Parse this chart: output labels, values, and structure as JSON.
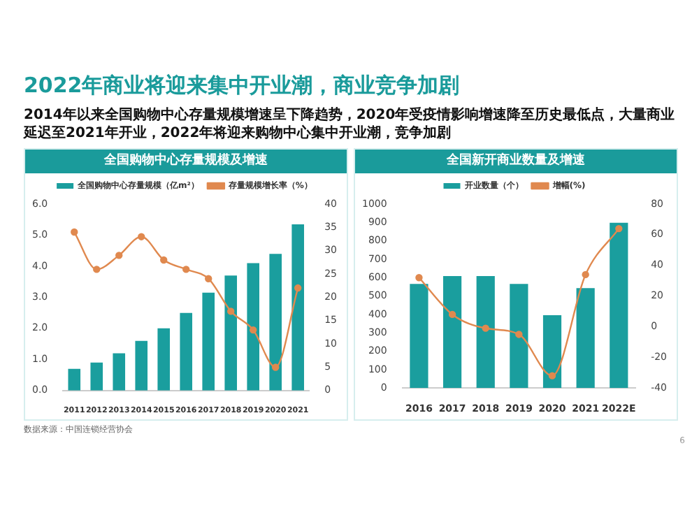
{
  "chart_data": [
    {
      "type": "other",
      "title": "2022年商业将迎来集中开业潮，商业竞争加剧",
      "subtitle": "2014年以来全国购物中心存量规模增速呈下降趋势，2020年受疫情影响增速降至历史最低点，大量商业延迟至2021年开业，2022年将迎来购物中心集中开业潮，竞争加剧",
      "annotations": [
        "6"
      ]
    },
    {
      "type": "bar",
      "title": "全国购物中心存量规模及增速",
      "categories": [
        "2011",
        "2012",
        "2013",
        "2014",
        "2015",
        "2016",
        "2017",
        "2018",
        "2019",
        "2020",
        "2021"
      ],
      "legend": "top",
      "grid": false,
      "marker": "circle",
      "ylim": [
        0,
        6
      ],
      "yticks": [
        {
          "value": 0,
          "label": "0.0"
        },
        {
          "value": 1,
          "label": "1.0"
        },
        {
          "value": 2,
          "label": "2.0"
        },
        {
          "value": 3,
          "label": "3.0"
        },
        {
          "value": 4,
          "label": "4.0"
        },
        {
          "value": 5,
          "label": "5.0"
        },
        {
          "value": 6,
          "label": "6.0"
        }
      ],
      "y2lim": [
        0,
        40
      ],
      "y2ticks": [
        0,
        5,
        10,
        15,
        20,
        25,
        30,
        35,
        40
      ],
      "annotations": [
        "数据来源：中国连锁经营协会"
      ],
      "series": [
        {
          "name": "全国购物中心存量规模（亿m²）",
          "type": "bar",
          "color": "#1a9e9e",
          "values": [
            0.7,
            0.9,
            1.2,
            1.6,
            2.0,
            2.5,
            3.15,
            3.7,
            4.1,
            4.4,
            5.35
          ]
        },
        {
          "name": "存量规模增长率（%）",
          "type": "line",
          "axis": "y2",
          "color": "#e0894f",
          "values": [
            34,
            26,
            29,
            33,
            28,
            26,
            24,
            17,
            13,
            5,
            22
          ]
        }
      ]
    },
    {
      "type": "bar",
      "title": "全国新开商业数量及增速",
      "categories": [
        "2016",
        "2017",
        "2018",
        "2019",
        "2020",
        "2021",
        "2022E"
      ],
      "legend": "top",
      "grid": false,
      "marker": "circle",
      "ylim": [
        0,
        1000
      ],
      "yticks": [
        0,
        100,
        200,
        300,
        400,
        500,
        600,
        700,
        800,
        900,
        1000
      ],
      "y2lim": [
        -40,
        80
      ],
      "y2ticks": [
        -40,
        -20,
        0,
        20,
        40,
        60,
        80
      ],
      "series": [
        {
          "name": "开业数量（个）",
          "type": "bar",
          "color": "#1a9e9e",
          "values": [
            566,
            609,
            609,
            566,
            396,
            543,
            898
          ]
        },
        {
          "name": "增幅(%)",
          "type": "line",
          "axis": "y2",
          "color": "#e0894f",
          "values": [
            32,
            8,
            -1,
            -5,
            -32,
            34,
            64
          ]
        }
      ]
    }
  ]
}
